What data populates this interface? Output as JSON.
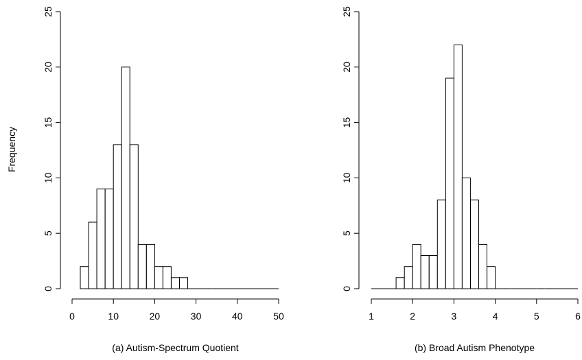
{
  "ylabel": "Frequency",
  "chart_data": [
    {
      "type": "bar",
      "subtype": "histogram",
      "title": "",
      "caption": "(a) Autism-Spectrum Quotient",
      "xlabel": "",
      "ylabel": "Frequency",
      "xlim": [
        0,
        50
      ],
      "ylim": [
        0,
        25
      ],
      "xticks": [
        0,
        10,
        20,
        30,
        40,
        50
      ],
      "yticks": [
        0,
        5,
        10,
        15,
        20,
        25
      ],
      "bin_width": 2,
      "bins_start": [
        2,
        4,
        6,
        8,
        10,
        12,
        14,
        16,
        18,
        20,
        22,
        24,
        26,
        28,
        30,
        32,
        34,
        36,
        38,
        40,
        42,
        44,
        46,
        48
      ],
      "values": [
        2,
        6,
        9,
        9,
        13,
        20,
        13,
        4,
        4,
        2,
        2,
        1,
        1,
        0,
        0,
        0,
        0,
        0,
        0,
        0,
        0,
        0,
        0,
        0
      ],
      "grid": false,
      "legend": "none"
    },
    {
      "type": "bar",
      "subtype": "histogram",
      "title": "",
      "caption": "(b) Broad Autism Phenotype",
      "xlabel": "",
      "ylabel": "",
      "xlim": [
        1,
        6
      ],
      "ylim": [
        0,
        25
      ],
      "xticks": [
        1,
        2,
        3,
        4,
        5,
        6
      ],
      "yticks": [
        0,
        5,
        10,
        15,
        20,
        25
      ],
      "bin_width": 0.2,
      "bins_start": [
        1.0,
        1.2,
        1.4,
        1.6,
        1.8,
        2.0,
        2.2,
        2.4,
        2.6,
        2.8,
        3.0,
        3.2,
        3.4,
        3.6,
        3.8,
        4.0,
        4.2,
        4.4,
        4.6,
        4.8,
        5.0,
        5.2,
        5.4,
        5.6,
        5.8
      ],
      "values": [
        0,
        0,
        0,
        1,
        2,
        4,
        3,
        3,
        8,
        19,
        22,
        10,
        8,
        4,
        2,
        0,
        0,
        0,
        0,
        0,
        0,
        0,
        0,
        0,
        0
      ],
      "grid": false,
      "legend": "none"
    }
  ]
}
